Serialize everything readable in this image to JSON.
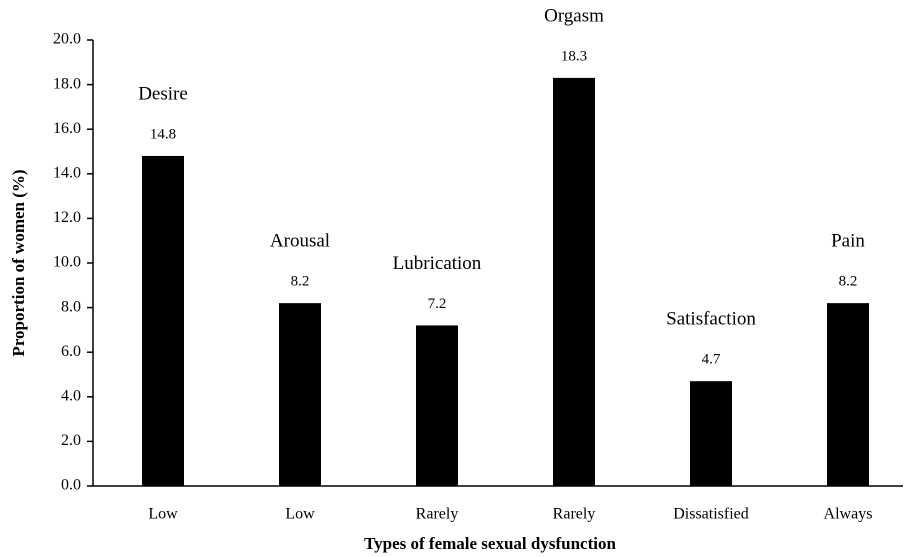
{
  "chart_data": {
    "type": "bar",
    "x_label": "Types of female sexual dysfunction",
    "y_label": "Proportion of women (%)",
    "categories": [
      "Low",
      "Low",
      "Rarely",
      "Rarely",
      "Dissatisfied",
      "Always"
    ],
    "group_labels": [
      "Desire",
      "Arousal",
      "Lubrication",
      "Orgasm",
      "Satisfaction",
      "Pain"
    ],
    "values": [
      14.8,
      8.2,
      7.2,
      18.3,
      4.7,
      8.2
    ],
    "color": "#000000",
    "ylim": [
      0,
      20
    ],
    "yticks": [
      {
        "value": 0,
        "label": "0.0"
      },
      {
        "value": 2,
        "label": "2.0"
      },
      {
        "value": 4,
        "label": "4.0"
      },
      {
        "value": 6,
        "label": "6.0"
      },
      {
        "value": 8,
        "label": "8.0"
      },
      {
        "value": 10,
        "label": "10.0"
      },
      {
        "value": 12,
        "label": "12.0"
      },
      {
        "value": 14,
        "label": "14.0"
      },
      {
        "value": 16,
        "label": "16.0"
      },
      {
        "value": 18,
        "label": "18.0"
      },
      {
        "value": 20,
        "label": "20.0"
      }
    ],
    "grid": false
  }
}
